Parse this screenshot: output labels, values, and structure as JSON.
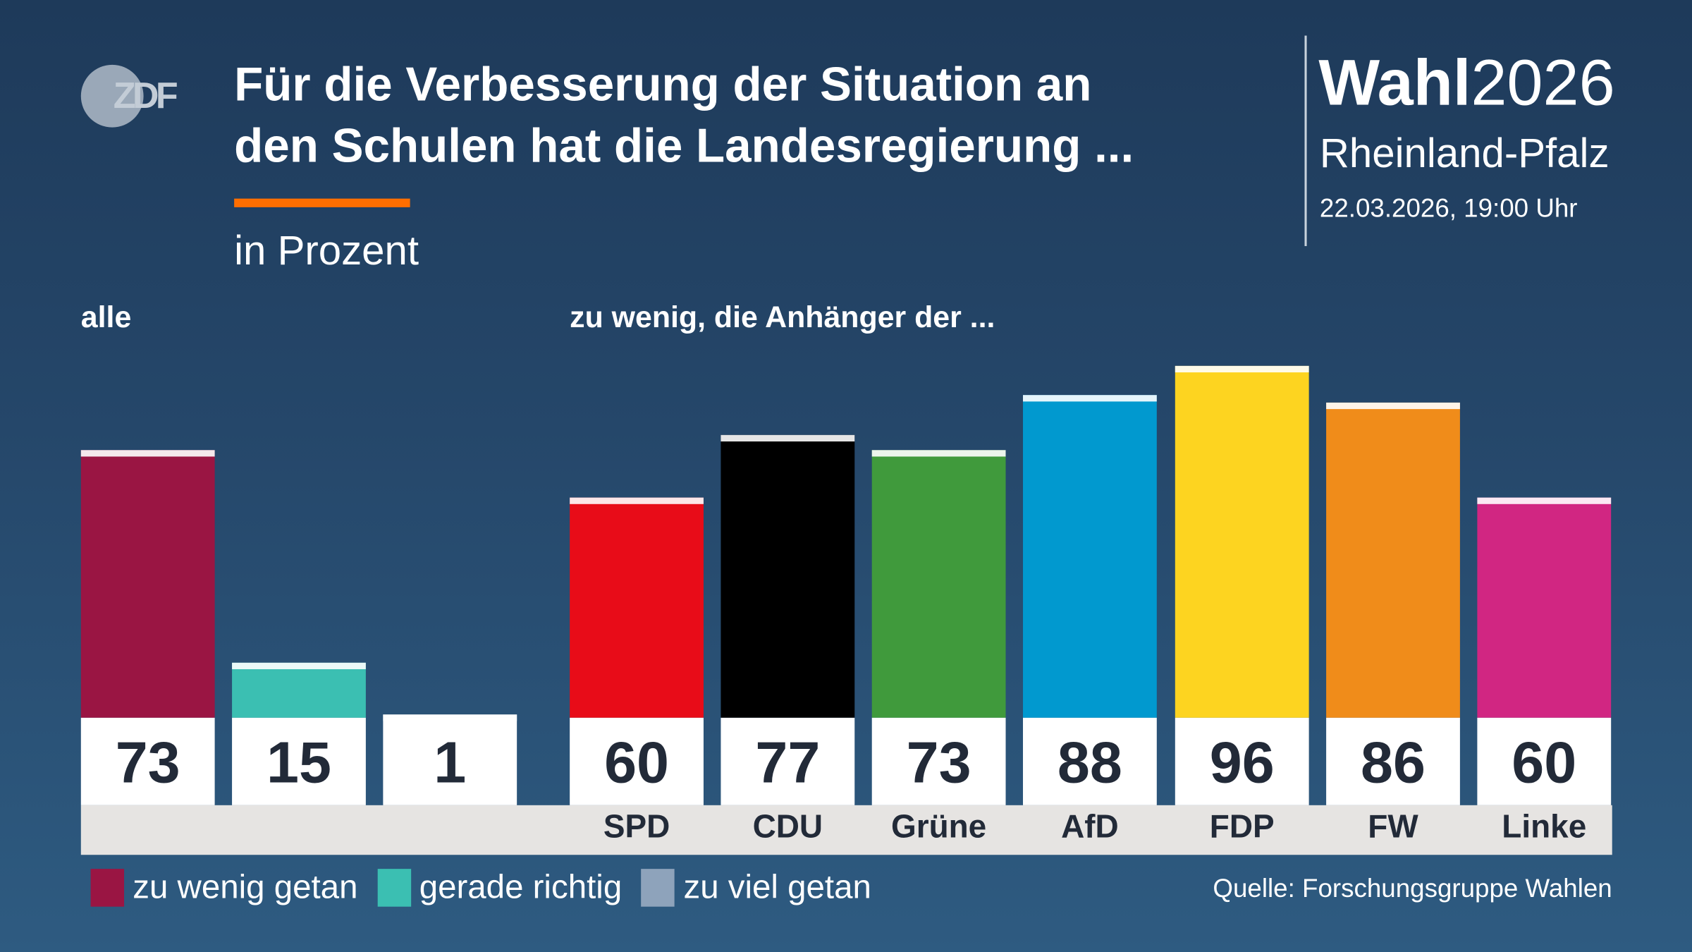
{
  "header": {
    "logo": "ZDF",
    "title_line1": "Für die Verbesserung der Situation an",
    "title_line2": "den Schulen hat die Landesregierung ...",
    "unit": "in Prozent",
    "brand_bold": "Wahl",
    "brand_year": "2026",
    "region": "Rheinland-Pfalz",
    "datetime": "22.03.2026, 19:00 Uhr"
  },
  "chart_data": {
    "type": "bar",
    "ylabel": "in Prozent",
    "groups": [
      {
        "label": "alle",
        "categories": [
          "zu wenig getan",
          "gerade richtig",
          "zu viel getan"
        ],
        "values": [
          73,
          15,
          1
        ],
        "colors": [
          "#9a1543",
          "#3bbfb2",
          "#ffffff"
        ]
      },
      {
        "label": "zu wenig, die Anhänger der ...",
        "categories": [
          "SPD",
          "CDU",
          "Grüne",
          "AfD",
          "FDP",
          "FW",
          "Linke"
        ],
        "values": [
          60,
          77,
          73,
          88,
          96,
          86,
          60
        ],
        "colors": [
          "#e80c18",
          "#000000",
          "#409a3c",
          "#0199cf",
          "#fdd420",
          "#f08c1a",
          "#d12682"
        ]
      }
    ],
    "legend": [
      {
        "label": "zu wenig getan",
        "color": "#9a1543"
      },
      {
        "label": "gerade richtig",
        "color": "#3bbfb2"
      },
      {
        "label": "zu viel getan",
        "color": "#8ea3bb"
      }
    ],
    "legend_placement": "bottom-left",
    "grid": false,
    "ylim": [
      0,
      100
    ]
  },
  "footer": {
    "source": "Quelle: Forschungsgruppe Wahlen"
  }
}
